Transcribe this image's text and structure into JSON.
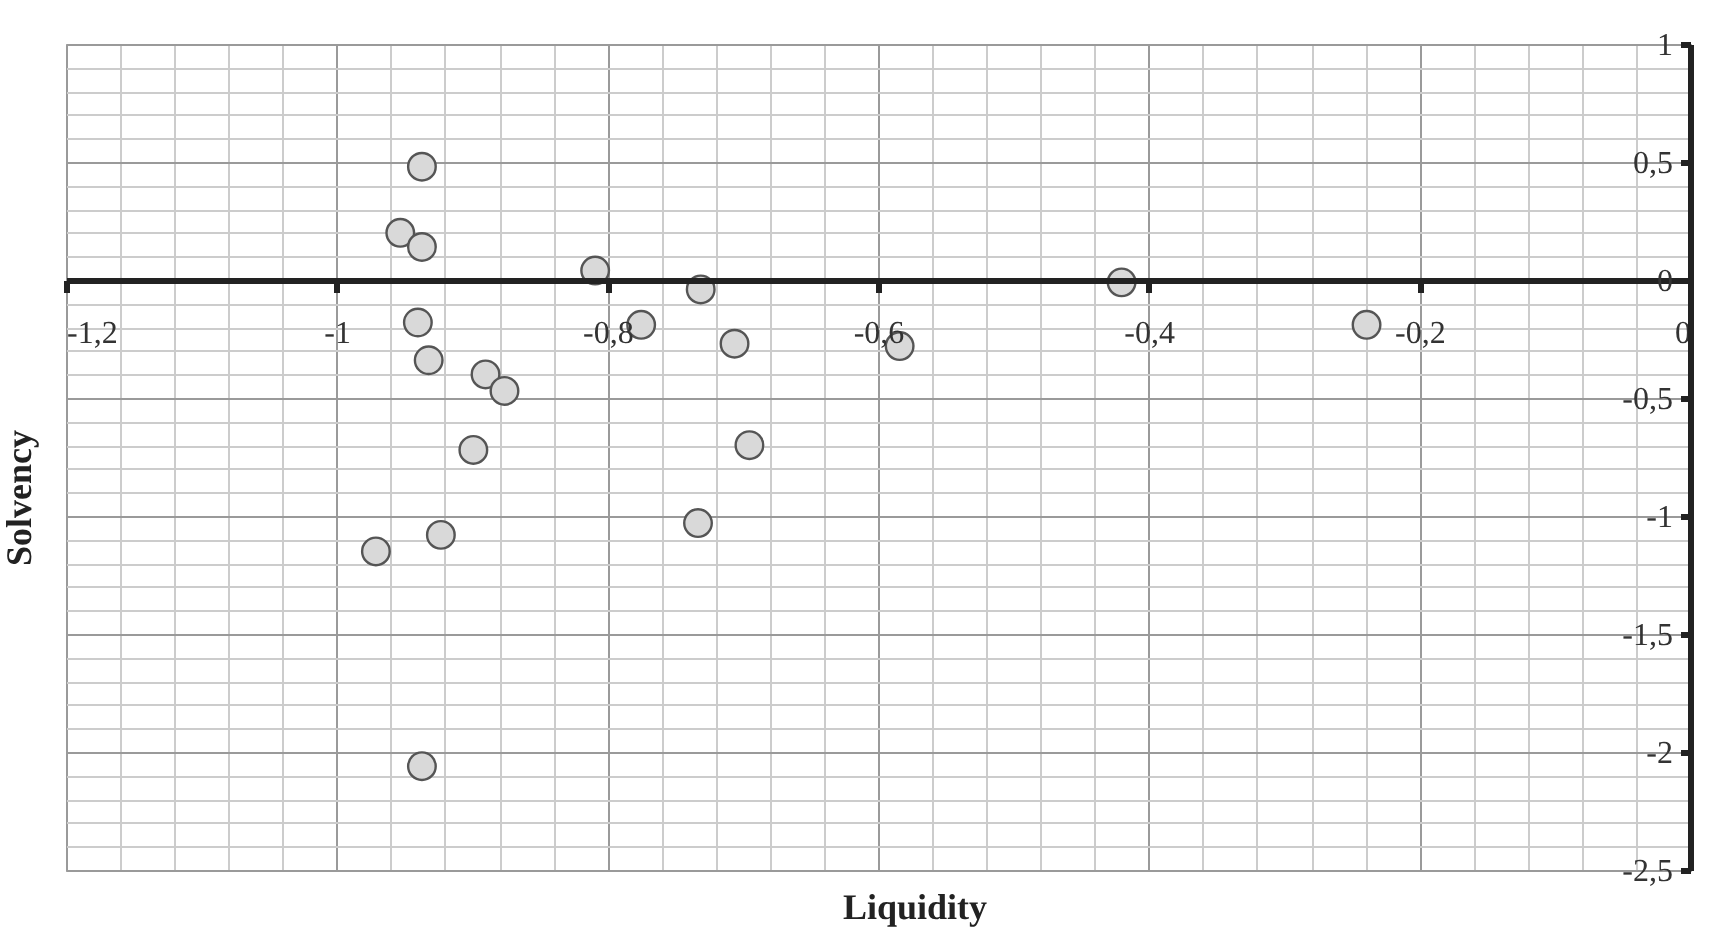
{
  "chart_data": {
    "type": "scatter",
    "xlabel": "Liquidity",
    "ylabel": "Solvency",
    "x": [
      -0.937,
      -0.953,
      -0.937,
      -0.809,
      -0.731,
      -0.775,
      -0.94,
      -0.706,
      -0.932,
      -0.89,
      -0.876,
      -0.899,
      -0.695,
      -0.733,
      -0.923,
      -0.971,
      -0.937,
      -0.42,
      -0.239,
      -0.584
    ],
    "series": [
      {
        "color": "#d9d9d9",
        "values": [
          0.48,
          0.2,
          0.14,
          0.04,
          -0.04,
          -0.19,
          -0.18,
          -0.27,
          -0.34,
          -0.4,
          -0.47,
          -0.72,
          -0.7,
          -1.03,
          -1.08,
          -1.15,
          -2.06,
          -0.01,
          -0.19,
          -0.28
        ]
      }
    ],
    "xlim": [
      -1.2,
      0
    ],
    "ylim": [
      -2.5,
      1
    ],
    "xticks": [
      {
        "value": -1.2,
        "label": "-1,2"
      },
      -1,
      {
        "value": -0.8,
        "label": "-0,8"
      },
      {
        "value": -0.6,
        "label": "-0,6"
      },
      {
        "value": -0.4,
        "label": "-0,4"
      },
      {
        "value": -0.2,
        "label": "-0,2"
      },
      0
    ],
    "yticks": [
      {
        "value": -2.5,
        "label": "-2,5"
      },
      -2,
      {
        "value": -1.5,
        "label": "-1,5"
      },
      -1,
      {
        "value": -0.5,
        "label": "-0,5"
      },
      0,
      {
        "value": 0.5,
        "label": "0,5"
      },
      1
    ],
    "grid": true,
    "marker": "circle"
  }
}
